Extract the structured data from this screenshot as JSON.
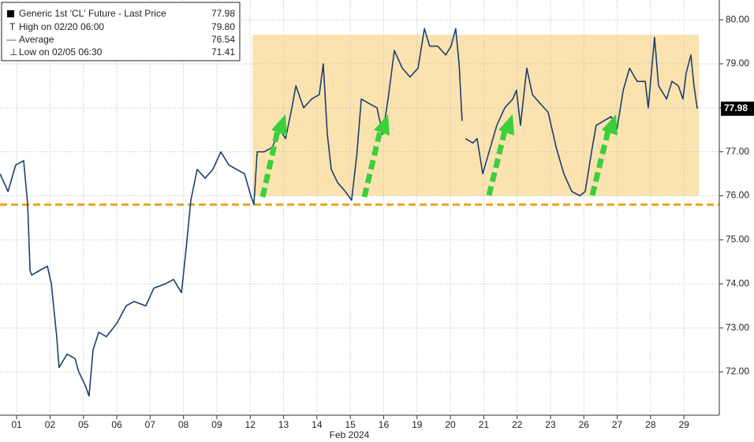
{
  "chart_data": {
    "type": "line",
    "x_label": "Feb 2024",
    "x": [
      0,
      0.24,
      0.47,
      0.71,
      0.83,
      0.9,
      0.95,
      1.18,
      1.42,
      1.54,
      1.7,
      1.77,
      2.01,
      2.25,
      2.36,
      2.55,
      2.67,
      2.79,
      2.96,
      3.19,
      3.5,
      3.78,
      4.02,
      4.37,
      4.61,
      4.96,
      5.2,
      5.44,
      5.58,
      5.72,
      5.91,
      6.15,
      6.38,
      6.62,
      6.86,
      7.09,
      7.33,
      7.52,
      7.61,
      7.71,
      7.92,
      8.16,
      8.39,
      8.56,
      8.75,
      8.87,
      9.1,
      9.34,
      9.57,
      9.69,
      9.81,
      9.93,
      10.12,
      10.35,
      10.54,
      10.69,
      10.83,
      11.06,
      11.3,
      11.47,
      11.63,
      11.82,
      12.06,
      12.29,
      12.53,
      12.72,
      12.88,
      13.12,
      13.36,
      13.52,
      13.66,
      13.76,
      13.85,
      13.9,
      13.95,
      14.18,
      14.3,
      14.47,
      14.66,
      14.89,
      15.13,
      15.37,
      15.48,
      15.6,
      15.79,
      15.96,
      16.19,
      16.43,
      16.67,
      16.9,
      17.14,
      17.38,
      17.54,
      17.73,
      17.87,
      18.09,
      18.32,
      18.49,
      18.68,
      18.87,
      19.1,
      19.34,
      19.43,
      19.62,
      19.74,
      19.98,
      20.14,
      20.33,
      20.47,
      20.57,
      20.71,
      20.8,
      20.9
    ],
    "series": [
      {
        "name": "Generic 1st 'CL' Future - Last Price",
        "color": "#1d3f70",
        "values": [
          76.5,
          76.1,
          76.7,
          76.8,
          75.8,
          74.3,
          74.2,
          74.3,
          74.4,
          74.0,
          72.8,
          72.1,
          72.4,
          72.3,
          72.0,
          71.7,
          71.45,
          72.5,
          72.9,
          72.8,
          73.1,
          73.5,
          73.6,
          73.5,
          73.9,
          74.0,
          74.1,
          73.8,
          74.8,
          75.9,
          76.6,
          76.4,
          76.6,
          77.0,
          76.7,
          76.6,
          76.5,
          76.0,
          75.8,
          77.0,
          77.0,
          77.1,
          77.5,
          77.3,
          78.0,
          78.5,
          78.0,
          78.2,
          78.3,
          79.0,
          77.4,
          76.6,
          76.3,
          76.1,
          75.9,
          76.9,
          78.2,
          78.1,
          78.0,
          77.4,
          78.2,
          79.3,
          78.9,
          78.7,
          78.9,
          79.8,
          79.4,
          79.4,
          79.2,
          79.4,
          79.8,
          79.0,
          77.7,
          null,
          77.3,
          77.2,
          77.3,
          76.5,
          77.0,
          77.6,
          78.0,
          78.2,
          78.4,
          77.6,
          78.9,
          78.3,
          78.1,
          77.9,
          77.1,
          76.5,
          76.1,
          76.0,
          76.1,
          77.0,
          77.6,
          77.7,
          77.8,
          77.5,
          78.4,
          78.9,
          78.6,
          78.6,
          78.0,
          79.6,
          78.5,
          78.2,
          78.6,
          78.5,
          78.2,
          78.8,
          79.2,
          78.5,
          77.98
        ]
      }
    ],
    "last_price": 77.98,
    "legend_stats": [
      {
        "label": "High on 02/20 06:00",
        "value": "79.80"
      },
      {
        "label": "Average",
        "value": "76.54"
      },
      {
        "label": "Low on 02/05 06:30",
        "value": "71.41"
      }
    ],
    "xlim": [
      0,
      21.56
    ],
    "xticks": [
      {
        "value": 0.5,
        "label": "01"
      },
      {
        "value": 1.5,
        "label": "02"
      },
      {
        "value": 2.5,
        "label": "05"
      },
      {
        "value": 3.5,
        "label": "06"
      },
      {
        "value": 4.5,
        "label": "07"
      },
      {
        "value": 5.5,
        "label": "08"
      },
      {
        "value": 6.5,
        "label": "09"
      },
      {
        "value": 7.5,
        "label": "12"
      },
      {
        "value": 8.5,
        "label": "13"
      },
      {
        "value": 9.5,
        "label": "14"
      },
      {
        "value": 10.5,
        "label": "15"
      },
      {
        "value": 11.5,
        "label": "16"
      },
      {
        "value": 12.5,
        "label": "19"
      },
      {
        "value": 13.5,
        "label": "20"
      },
      {
        "value": 14.5,
        "label": "21"
      },
      {
        "value": 15.5,
        "label": "22"
      },
      {
        "value": 16.5,
        "label": "23"
      },
      {
        "value": 17.5,
        "label": "26"
      },
      {
        "value": 18.5,
        "label": "27"
      },
      {
        "value": 19.5,
        "label": "28"
      },
      {
        "value": 20.5,
        "label": "29"
      }
    ],
    "ylim": [
      71.05,
      80.45
    ],
    "yticks": [
      {
        "value": 72,
        "label": "72.00"
      },
      {
        "value": 73,
        "label": "73.00"
      },
      {
        "value": 74,
        "label": "74.00"
      },
      {
        "value": 75,
        "label": "75.00"
      },
      {
        "value": 76,
        "label": "76.00"
      },
      {
        "value": 77,
        "label": "77.00"
      },
      {
        "value": 78,
        "label": "78.00"
      },
      {
        "value": 79,
        "label": "79.00"
      },
      {
        "value": 80,
        "label": "80.00"
      }
    ],
    "range_band": {
      "x": [
        7.57,
        20.95
      ],
      "y": [
        76.0,
        79.66
      ],
      "color": "#fbe3b0"
    },
    "support_line": {
      "value": 75.8,
      "color": "#e8a321"
    },
    "grid": true
  }
}
